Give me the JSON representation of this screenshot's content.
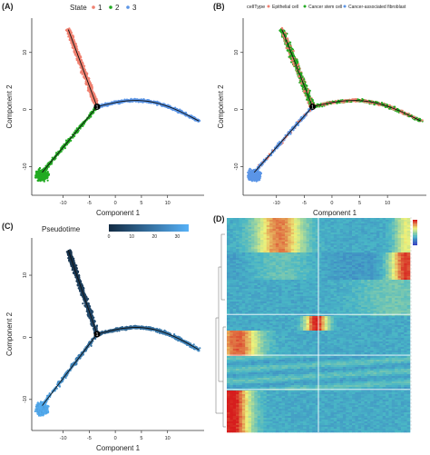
{
  "chart_data": [
    {
      "panel": "(A)",
      "type": "scatter",
      "xlabel": "Component 1",
      "ylabel": "Component 2",
      "x_ticks": [
        "-10",
        "-5",
        "0",
        "5",
        "10"
      ],
      "y_ticks": [
        "10",
        "0",
        "-10"
      ],
      "xlim": [
        -16,
        17
      ],
      "ylim": [
        -15,
        16
      ],
      "legend": {
        "title": "State",
        "placement": "top",
        "items": [
          "1",
          "2",
          "3"
        ]
      },
      "colors": [
        "#f08070",
        "#22aa22",
        "#5b95e6"
      ],
      "branch_point": {
        "x": -3.5,
        "y": 0.5,
        "label": "1"
      },
      "branches": [
        {
          "state": "1",
          "from": [
            -9,
            14
          ],
          "to": [
            -3.5,
            0.5
          ]
        },
        {
          "state": "3",
          "from": [
            -3.5,
            0.5
          ],
          "to": [
            16,
            -2
          ]
        },
        {
          "state": "2",
          "from": [
            -3.5,
            0.5
          ],
          "to": [
            -14,
            -11
          ]
        }
      ]
    },
    {
      "panel": "(B)",
      "type": "scatter",
      "xlabel": "Component 1",
      "ylabel": "Component 2",
      "x_ticks": [
        "-10",
        "-5",
        "0",
        "5",
        "10"
      ],
      "y_ticks": [
        "10",
        "0",
        "-10"
      ],
      "xlim": [
        -16,
        17
      ],
      "ylim": [
        -15,
        16
      ],
      "legend": {
        "title": "cellType",
        "placement": "top",
        "items": [
          "Epithelial cell",
          "Cancer stem cell",
          "Cancer-associated fibroblast"
        ]
      },
      "colors": [
        "#f08070",
        "#22aa22",
        "#5b95e6"
      ],
      "branch_point": {
        "x": -3.5,
        "y": 0.5,
        "label": "1"
      }
    },
    {
      "panel": "(C)",
      "type": "scatter",
      "xlabel": "Component 1",
      "ylabel": "Component 2",
      "x_ticks": [
        "-10",
        "-5",
        "0",
        "5",
        "10"
      ],
      "y_ticks": [
        "10",
        "0",
        "-10"
      ],
      "xlim": [
        -16,
        17
      ],
      "ylim": [
        -15,
        16
      ],
      "legend": {
        "title": "Pseudotime",
        "placement": "top",
        "ticks": [
          "0",
          "10",
          "20",
          "30"
        ],
        "range": [
          0,
          35
        ]
      },
      "colors": [
        "#132b43",
        "#56b1f7"
      ],
      "branch_point": {
        "x": -3.5,
        "y": 0.5,
        "label": "1"
      }
    },
    {
      "panel": "(D)",
      "type": "heatmap",
      "colors": [
        "#2f3fbf",
        "#49b6c6",
        "#eef27a",
        "#d61d1d"
      ]
    }
  ]
}
